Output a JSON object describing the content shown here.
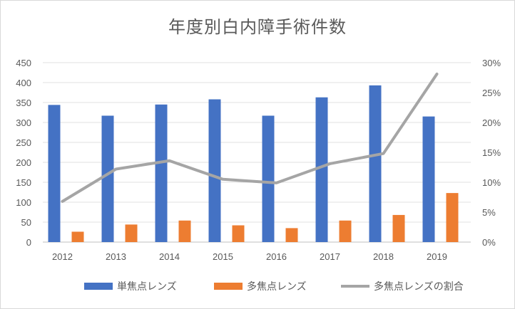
{
  "chart_data": {
    "type": "bar",
    "title": "年度別白内障手術件数",
    "categories": [
      "2012",
      "2013",
      "2014",
      "2015",
      "2016",
      "2017",
      "2018",
      "2019"
    ],
    "series": [
      {
        "name": "単焦点レンズ",
        "type": "bar",
        "axis": "left",
        "color": "#4472C4",
        "values": [
          344,
          317,
          345,
          358,
          317,
          363,
          393,
          315
        ]
      },
      {
        "name": "多焦点レンズ",
        "type": "bar",
        "axis": "left",
        "color": "#ED7D31",
        "values": [
          26,
          44,
          54,
          42,
          35,
          54,
          68,
          123
        ]
      },
      {
        "name": "多焦点レンズの割合",
        "type": "line",
        "axis": "right",
        "color": "#A5A5A5",
        "values": [
          0.068,
          0.122,
          0.136,
          0.105,
          0.099,
          0.131,
          0.148,
          0.281
        ]
      }
    ],
    "yleft": {
      "min": 0,
      "max": 450,
      "step": 50,
      "ticks": [
        "0",
        "50",
        "100",
        "150",
        "200",
        "250",
        "300",
        "350",
        "400",
        "450"
      ]
    },
    "yright": {
      "min": 0,
      "max": 0.3,
      "step": 0.05,
      "ticks": [
        "0%",
        "5%",
        "10%",
        "15%",
        "20%",
        "25%",
        "30%"
      ]
    },
    "grid": true,
    "legend": "bottom"
  }
}
